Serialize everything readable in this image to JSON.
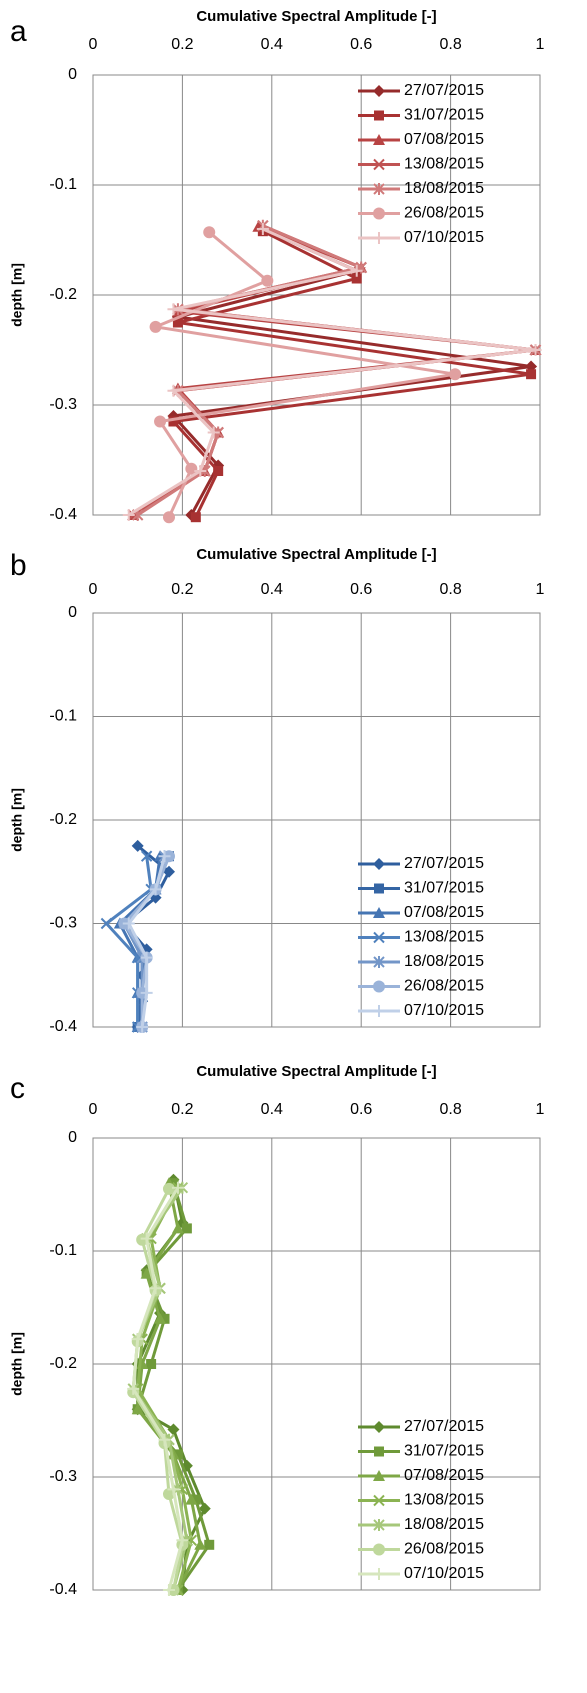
{
  "chart_data": [
    {
      "type": "line",
      "panel_label": "a",
      "title": "Cumulative Spectral Amplitude [-]",
      "y_label": "depth [m]",
      "xlim": [
        0,
        1
      ],
      "xticks": [
        0,
        0.2,
        0.4,
        0.6,
        0.8,
        1
      ],
      "ylim": [
        -0.4,
        0
      ],
      "yticks": [
        0,
        -0.1,
        -0.2,
        -0.3,
        -0.4
      ],
      "grid": true,
      "legend": "upper right",
      "series": [
        {
          "name": "27/07/2015",
          "color": "#962b2b",
          "marker": "diamond",
          "x": [
            0.38,
            0.59,
            0.19,
            0.98,
            0.18,
            0.28,
            0.22
          ],
          "values": [
            -0.14,
            -0.178,
            -0.22,
            -0.265,
            -0.31,
            -0.355,
            -0.4
          ]
        },
        {
          "name": "31/07/2015",
          "color": "#a83232",
          "marker": "square",
          "x": [
            0.38,
            0.59,
            0.19,
            0.98,
            0.18,
            0.28,
            0.23
          ],
          "values": [
            -0.142,
            -0.185,
            -0.225,
            -0.272,
            -0.315,
            -0.36,
            -0.402
          ]
        },
        {
          "name": "07/08/2015",
          "color": "#b84343",
          "marker": "triangle",
          "x": [
            0.37,
            0.6,
            0.19,
            0.99,
            0.19,
            0.28,
            0.25,
            0.09
          ],
          "values": [
            -0.138,
            -0.175,
            -0.215,
            -0.25,
            -0.285,
            -0.325,
            -0.36,
            -0.4
          ]
        },
        {
          "name": "13/08/2015",
          "color": "#c05353",
          "marker": "x",
          "x": [
            0.38,
            0.6,
            0.19,
            0.99,
            0.19,
            0.28,
            0.25,
            0.09
          ],
          "values": [
            -0.137,
            -0.175,
            -0.213,
            -0.25,
            -0.287,
            -0.325,
            -0.36,
            -0.4
          ]
        },
        {
          "name": "18/08/2015",
          "color": "#d07a7a",
          "marker": "asterisk",
          "x": [
            0.38,
            0.6,
            0.19,
            0.99,
            0.19,
            0.28,
            0.25,
            0.1
          ],
          "values": [
            -0.137,
            -0.175,
            -0.213,
            -0.25,
            -0.287,
            -0.325,
            -0.36,
            -0.4
          ]
        },
        {
          "name": "26/08/2015",
          "color": "#e0a0a0",
          "marker": "circle",
          "x": [
            0.26,
            0.39,
            0.14,
            0.81,
            0.15,
            0.22,
            0.17
          ],
          "values": [
            -0.143,
            -0.187,
            -0.229,
            -0.272,
            -0.315,
            -0.358,
            -0.402
          ]
        },
        {
          "name": "07/10/2015",
          "color": "#ebc4c4",
          "marker": "plus",
          "x": [
            0.38,
            0.59,
            0.18,
            0.99,
            0.18,
            0.27,
            0.24,
            0.08
          ],
          "values": [
            -0.14,
            -0.178,
            -0.213,
            -0.25,
            -0.287,
            -0.325,
            -0.36,
            -0.4
          ]
        }
      ]
    },
    {
      "type": "line",
      "panel_label": "b",
      "title": "Cumulative Spectral Amplitude [-]",
      "y_label": "depth [m]",
      "xlim": [
        0,
        1
      ],
      "xticks": [
        0,
        0.2,
        0.4,
        0.6,
        0.8,
        1
      ],
      "ylim": [
        -0.4,
        0
      ],
      "yticks": [
        0,
        -0.1,
        -0.2,
        -0.3,
        -0.4
      ],
      "grid": true,
      "legend": "lower right",
      "series": [
        {
          "name": "27/07/2015",
          "color": "#2e5e9e",
          "marker": "diamond",
          "x": [
            0.1,
            0.17,
            0.14,
            0.07,
            0.12,
            0.11,
            0.11,
            0.1
          ],
          "values": [
            -0.225,
            -0.25,
            -0.275,
            -0.3,
            -0.325,
            -0.35,
            -0.375,
            -0.4
          ]
        },
        {
          "name": "31/07/2015",
          "color": "#3465a4",
          "marker": "square",
          "x": [
            0.17,
            0.14,
            0.07,
            0.11,
            0.11,
            0.1
          ],
          "values": [
            -0.235,
            -0.267,
            -0.3,
            -0.333,
            -0.367,
            -0.4
          ]
        },
        {
          "name": "07/08/2015",
          "color": "#4575b3",
          "marker": "triangle",
          "x": [
            0.15,
            0.14,
            0.06,
            0.1,
            0.1,
            0.1
          ],
          "values": [
            -0.235,
            -0.267,
            -0.3,
            -0.333,
            -0.367,
            -0.4
          ]
        },
        {
          "name": "13/08/2015",
          "color": "#4f81bd",
          "marker": "x",
          "x": [
            0.12,
            0.13,
            0.03,
            0.1,
            0.1,
            0.1
          ],
          "values": [
            -0.235,
            -0.267,
            -0.3,
            -0.333,
            -0.367,
            -0.4
          ]
        },
        {
          "name": "18/08/2015",
          "color": "#7396c8",
          "marker": "asterisk",
          "x": [
            0.16,
            0.14,
            0.07,
            0.11,
            0.11,
            0.11
          ],
          "values": [
            -0.235,
            -0.267,
            -0.3,
            -0.333,
            -0.367,
            -0.4
          ]
        },
        {
          "name": "26/08/2015",
          "color": "#9ab3d9",
          "marker": "circle",
          "x": [
            0.17,
            0.14,
            0.07,
            0.12,
            0.11,
            0.11
          ],
          "values": [
            -0.235,
            -0.267,
            -0.3,
            -0.333,
            -0.367,
            -0.4
          ]
        },
        {
          "name": "07/10/2015",
          "color": "#c0d0e8",
          "marker": "plus",
          "x": [
            0.16,
            0.14,
            0.08,
            0.12,
            0.12,
            0.11
          ],
          "values": [
            -0.235,
            -0.267,
            -0.3,
            -0.333,
            -0.367,
            -0.4
          ]
        }
      ]
    },
    {
      "type": "line",
      "panel_label": "c",
      "title": "Cumulative Spectral Amplitude [-]",
      "y_label": "depth [m]",
      "xlim": [
        0,
        1
      ],
      "xticks": [
        0,
        0.2,
        0.4,
        0.6,
        0.8,
        1
      ],
      "ylim": [
        -0.4,
        0
      ],
      "yticks": [
        0,
        -0.1,
        -0.2,
        -0.3,
        -0.4
      ],
      "grid": true,
      "legend": "lower right",
      "series": [
        {
          "name": "27/07/2015",
          "color": "#5e8a2e",
          "marker": "diamond",
          "x": [
            0.18,
            0.2,
            0.12,
            0.15,
            0.1,
            0.1,
            0.18,
            0.21,
            0.25,
            0.21,
            0.2
          ],
          "values": [
            -0.037,
            -0.075,
            -0.117,
            -0.155,
            -0.2,
            -0.24,
            -0.258,
            -0.29,
            -0.328,
            -0.36,
            -0.4
          ]
        },
        {
          "name": "31/07/2015",
          "color": "#6f9a3a",
          "marker": "square",
          "x": [
            0.18,
            0.21,
            0.12,
            0.16,
            0.13,
            0.1,
            0.19,
            0.23,
            0.26,
            0.19
          ],
          "values": [
            -0.04,
            -0.08,
            -0.12,
            -0.16,
            -0.2,
            -0.24,
            -0.28,
            -0.32,
            -0.36,
            -0.4
          ]
        },
        {
          "name": "07/08/2015",
          "color": "#7ea746",
          "marker": "triangle",
          "x": [
            0.17,
            0.19,
            0.12,
            0.15,
            0.11,
            0.1,
            0.18,
            0.22,
            0.24,
            0.19
          ],
          "values": [
            -0.04,
            -0.08,
            -0.12,
            -0.16,
            -0.2,
            -0.24,
            -0.28,
            -0.32,
            -0.36,
            -0.4
          ]
        },
        {
          "name": "13/08/2015",
          "color": "#8bb352",
          "marker": "x",
          "x": [
            0.19,
            0.13,
            0.15,
            0.11,
            0.1,
            0.17,
            0.2,
            0.22,
            0.19
          ],
          "values": [
            -0.044,
            -0.089,
            -0.133,
            -0.178,
            -0.222,
            -0.267,
            -0.311,
            -0.356,
            -0.4
          ]
        },
        {
          "name": "18/08/2015",
          "color": "#a6c77a",
          "marker": "asterisk",
          "x": [
            0.2,
            0.12,
            0.15,
            0.1,
            0.09,
            0.17,
            0.19,
            0.21,
            0.18
          ],
          "values": [
            -0.044,
            -0.089,
            -0.133,
            -0.178,
            -0.222,
            -0.267,
            -0.311,
            -0.356,
            -0.4
          ]
        },
        {
          "name": "26/08/2015",
          "color": "#bfd89c",
          "marker": "circle",
          "x": [
            0.17,
            0.11,
            0.14,
            0.1,
            0.09,
            0.16,
            0.17,
            0.2,
            0.18
          ],
          "values": [
            -0.045,
            -0.09,
            -0.135,
            -0.18,
            -0.225,
            -0.27,
            -0.315,
            -0.36,
            -0.4
          ]
        },
        {
          "name": "07/10/2015",
          "color": "#d6e6bd",
          "marker": "plus",
          "x": [
            0.19,
            0.12,
            0.14,
            0.1,
            0.09,
            0.16,
            0.18,
            0.2,
            0.17
          ],
          "values": [
            -0.044,
            -0.089,
            -0.133,
            -0.178,
            -0.222,
            -0.267,
            -0.311,
            -0.356,
            -0.4
          ]
        }
      ]
    }
  ]
}
